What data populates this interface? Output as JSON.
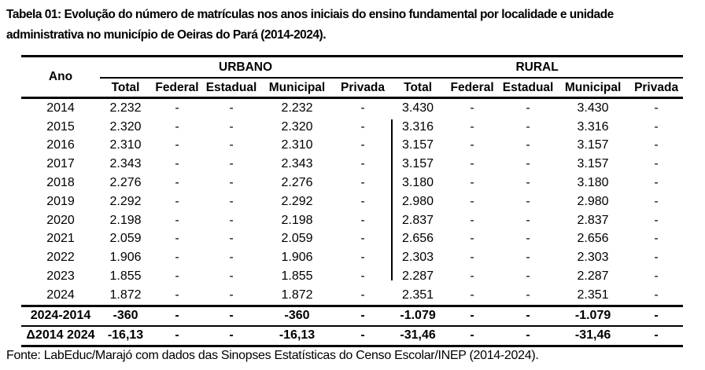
{
  "title": "Tabela 01: Evolução do número de matrículas nos anos iniciais do ensino fundamental por localidade e unidade administrativa no município de Oeiras do Pará (2014-2024).",
  "table": {
    "col_ano": "Ano",
    "groups": [
      {
        "label": "URBANO"
      },
      {
        "label": "RURAL"
      }
    ],
    "subheaders": [
      "Total",
      "Federal",
      "Estadual",
      "Municipal",
      "Privada"
    ],
    "rows": [
      {
        "ano": "2014",
        "urbano": [
          "2.232",
          "-",
          "-",
          "2.232",
          "-"
        ],
        "rural": [
          "3.430",
          "-",
          "-",
          "3.430",
          "-"
        ]
      },
      {
        "ano": "2015",
        "urbano": [
          "2.320",
          "-",
          "-",
          "2.320",
          "-"
        ],
        "rural": [
          "3.316",
          "-",
          "-",
          "3.316",
          "-"
        ]
      },
      {
        "ano": "2016",
        "urbano": [
          "2.310",
          "-",
          "-",
          "2.310",
          "-"
        ],
        "rural": [
          "3.157",
          "-",
          "-",
          "3.157",
          "-"
        ]
      },
      {
        "ano": "2017",
        "urbano": [
          "2.343",
          "-",
          "-",
          "2.343",
          "-"
        ],
        "rural": [
          "3.157",
          "-",
          "-",
          "3.157",
          "-"
        ]
      },
      {
        "ano": "2018",
        "urbano": [
          "2.276",
          "-",
          "-",
          "2.276",
          "-"
        ],
        "rural": [
          "3.180",
          "-",
          "-",
          "3.180",
          "-"
        ]
      },
      {
        "ano": "2019",
        "urbano": [
          "2.292",
          "-",
          "-",
          "2.292",
          "-"
        ],
        "rural": [
          "2.980",
          "-",
          "-",
          "2.980",
          "-"
        ]
      },
      {
        "ano": "2020",
        "urbano": [
          "2.198",
          "-",
          "-",
          "2.198",
          "-"
        ],
        "rural": [
          "2.837",
          "-",
          "-",
          "2.837",
          "-"
        ]
      },
      {
        "ano": "2021",
        "urbano": [
          "2.059",
          "-",
          "-",
          "2.059",
          "-"
        ],
        "rural": [
          "2.656",
          "-",
          "-",
          "2.656",
          "-"
        ]
      },
      {
        "ano": "2022",
        "urbano": [
          "1.906",
          "-",
          "-",
          "1.906",
          "-"
        ],
        "rural": [
          "2.303",
          "-",
          "-",
          "2.303",
          "-"
        ]
      },
      {
        "ano": "2023",
        "urbano": [
          "1.855",
          "-",
          "-",
          "1.855",
          "-"
        ],
        "rural": [
          "2.287",
          "-",
          "-",
          "2.287",
          "-"
        ]
      },
      {
        "ano": "2024",
        "urbano": [
          "1.872",
          "-",
          "-",
          "1.872",
          "-"
        ],
        "rural": [
          "2.351",
          "-",
          "-",
          "2.351",
          "-"
        ]
      }
    ],
    "summary_rows": [
      {
        "ano": "2024-2014",
        "urbano": [
          "-360",
          "-",
          "-",
          "-360",
          "-"
        ],
        "rural": [
          "-1.079",
          "-",
          "-",
          "-1.079",
          "-"
        ]
      },
      {
        "ano": "Δ2014 2024",
        "urbano": [
          "-16,13",
          "-",
          "-",
          "-16,13",
          "-"
        ],
        "rural": [
          "-31,46",
          "-",
          "-",
          "-31,46",
          "-"
        ]
      }
    ]
  },
  "footer": "Fonte: LabEduc/Marajó com dados das Sinopses Estatísticas do Censo Escolar/INEP (2014-2024)."
}
